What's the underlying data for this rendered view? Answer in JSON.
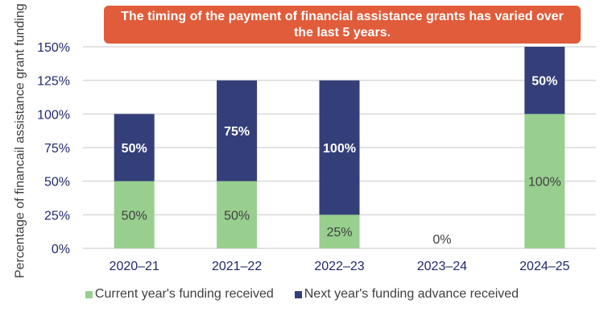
{
  "chart_data": {
    "type": "bar",
    "stacked": true,
    "title": "The timing of the payment of financial assistance grants has varied over the last 5 years.",
    "ylabel": "Percentage of financail assistance grant funding received",
    "xlabel": "",
    "categories": [
      "2020–21",
      "2021–22",
      "2022–23",
      "2023–24",
      "2024–25"
    ],
    "series": [
      {
        "name": "Current year's funding received",
        "values": [
          50,
          50,
          25,
          0,
          100
        ],
        "color": "#98cf8f"
      },
      {
        "name": "Next year's funding advance received",
        "values": [
          50,
          75,
          100,
          0,
          50
        ],
        "color": "#343f7a"
      }
    ],
    "data_labels": [
      [
        "50%",
        "50%",
        "25%",
        "0%",
        "100%"
      ],
      [
        "50%",
        "75%",
        "100%",
        "",
        "50%"
      ]
    ],
    "ylim": [
      0,
      150
    ],
    "yticks": [
      "0%",
      "25%",
      "50%",
      "75%",
      "100%",
      "125%",
      "150%"
    ],
    "grid": true,
    "legend_position": "bottom",
    "banner_color": "#e05c3a",
    "tick_color": "#1f2a6b"
  }
}
